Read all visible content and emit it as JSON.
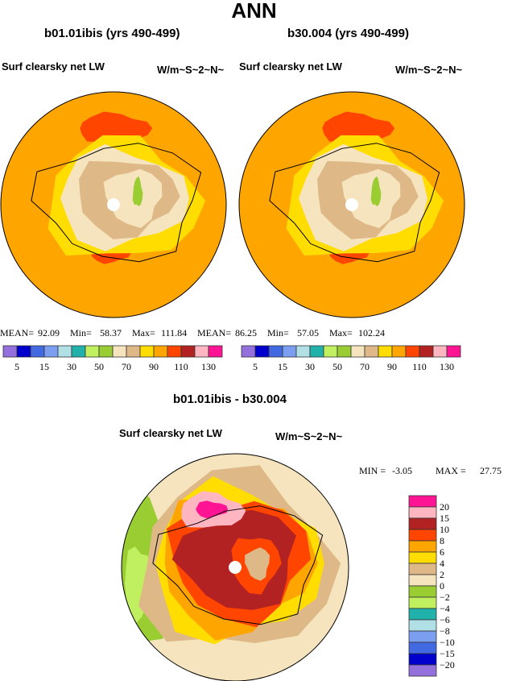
{
  "chart_data": {
    "type": "heatmap",
    "title": "ANN",
    "panels": [
      {
        "title": "b01.01ibis (yrs 490-499)",
        "variable": "Surf clearsky net LW",
        "units": "W/m~S~2~N~",
        "stats": {
          "mean_label": "MEAN=",
          "mean": "92.09",
          "min_label": "Min=",
          "min": "58.37",
          "max_label": "Max=",
          "max": "111.84"
        },
        "colorbar_labels": [
          "5",
          "15",
          "30",
          "50",
          "70",
          "90",
          "110",
          "130"
        ]
      },
      {
        "title": "b30.004 (yrs 490-499)",
        "variable": "Surf clearsky net LW",
        "units": "W/m~S~2~N~",
        "stats": {
          "mean_label": "MEAN=",
          "mean": "86.25",
          "min_label": "Min=",
          "min": "57.05",
          "max_label": "Max=",
          "max": "102.24"
        },
        "colorbar_labels": [
          "5",
          "15",
          "30",
          "50",
          "70",
          "90",
          "110",
          "130"
        ]
      },
      {
        "title": "b01.01ibis - b30.004",
        "variable": "Surf clearsky net LW",
        "units": "W/m~S~2~N~",
        "stats": {
          "min_label": "MIN =",
          "min": "-3.05",
          "max_label": "MAX =",
          "max": "27.75"
        },
        "colorbar_labels": [
          "20",
          "15",
          "10",
          "8",
          "6",
          "4",
          "2",
          "0",
          "−2",
          "−4",
          "−6",
          "−8",
          "−10",
          "−15",
          "−20"
        ]
      }
    ],
    "abs_colors": [
      "#9370DB",
      "#0000CD",
      "#4169E1",
      "#7B9EF0",
      "#B0E0E6",
      "#20B2AA",
      "#C0F060",
      "#9ACD32",
      "#F5E4BE",
      "#DEB887",
      "#FFDD00",
      "#FFA500",
      "#FF4500",
      "#B22222",
      "#FFB6C1",
      "#FF1493"
    ],
    "diff_colors_top_to_bottom": [
      "#FF1493",
      "#FFB6C1",
      "#B22222",
      "#FF4500",
      "#FFA500",
      "#FFDD00",
      "#DEB887",
      "#F5E4BE",
      "#9ACD32",
      "#C0F060",
      "#20B2AA",
      "#B0E0E6",
      "#7B9EF0",
      "#4169E1",
      "#0000CD",
      "#9370DB"
    ]
  }
}
